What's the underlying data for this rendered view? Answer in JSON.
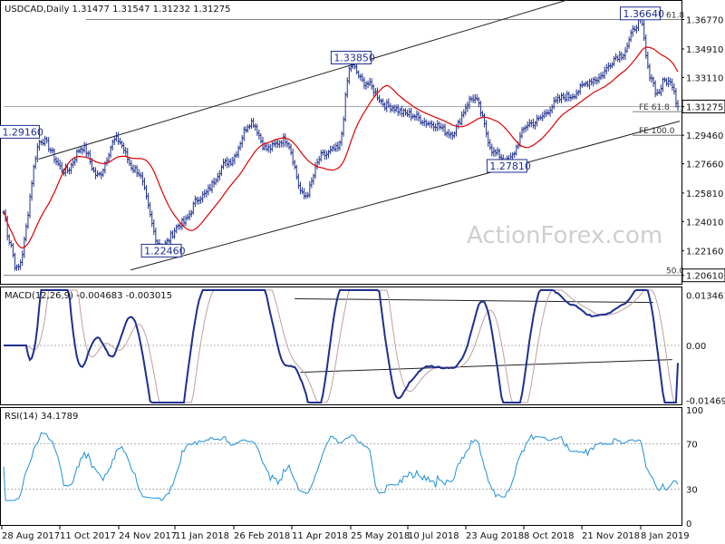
{
  "chart_data": [
    {
      "type": "candlestick",
      "panel": "price",
      "header": "USDCAD,Daily  1.31477  1.31547  1.31232  1.31275",
      "symbol": "USDCAD",
      "timeframe": "Daily",
      "ohlc_last": {
        "open": 1.31477,
        "high": 1.31547,
        "low": 1.31232,
        "close": 1.31275
      },
      "current_price_label": "1.31275",
      "yticks": [
        "1.36770",
        "1.34910",
        "1.33110",
        "1.31275",
        "1.29460",
        "1.27660",
        "1.25810",
        "1.24010",
        "1.22160",
        "1.20610"
      ],
      "ylim": [
        1.2025,
        1.372
      ],
      "ma_color": "#e00000",
      "candle_color": "#1f2f8f",
      "annotations": [
        {
          "id": "a1",
          "text": "1.29160",
          "x_index": 20,
          "price": 1.2916
        },
        {
          "id": "a2",
          "text": "1.22460",
          "x_index": 84,
          "price": 1.2246
        },
        {
          "id": "a3",
          "text": "1.33850",
          "x_index": 185,
          "price": 1.3385
        },
        {
          "id": "a4",
          "text": "1.27810",
          "x_index": 268,
          "price": 1.2781
        },
        {
          "id": "a5",
          "text": "1.36640",
          "x_index": 339,
          "price": 1.3664
        }
      ],
      "fib_levels": [
        {
          "id": "f1",
          "text": "61.8",
          "price": 1.3677
        },
        {
          "id": "f2",
          "text": "FE 61.8",
          "price": 1.3095
        },
        {
          "id": "f3",
          "text": "FE 100.0",
          "price": 1.2946
        },
        {
          "id": "f4",
          "text": "50.0",
          "price": 1.2061
        }
      ],
      "channel": {
        "upper": [
          [
            8,
            1.2795
          ],
          [
            300,
            1.38
          ]
        ],
        "lower": [
          [
            57,
            1.2095
          ],
          [
            360,
            1.3035
          ]
        ]
      },
      "watermark": "ActionForex.com"
    },
    {
      "type": "line",
      "panel": "macd",
      "header": "MACD(12,26,9) -0.004683 -0.003015",
      "values": {
        "macd": -0.004683,
        "signal": -0.003015
      },
      "yticks": [
        "0.013461",
        "0.00",
        "-0.014694"
      ],
      "ylim": [
        -0.0153,
        0.0148
      ],
      "macd_color": "#1f2f8f",
      "signal_color": "#c0a0a0"
    },
    {
      "type": "line",
      "panel": "rsi",
      "header": "RSI(14) 34.1789",
      "value": 34.1789,
      "yticks": [
        "100",
        "70",
        "30",
        "0"
      ],
      "ylim": [
        0,
        100
      ],
      "line_color": "#1e90d8"
    }
  ],
  "x_axis_labels": [
    "28 Aug 2017",
    "11 Oct 2017",
    "24 Nov 2017",
    "11 Jan 2018",
    "26 Feb 2018",
    "11 Apr 2018",
    "25 May 2018",
    "10 Jul 2018",
    "23 Aug 2018",
    "8 Oct 2018",
    "21 Nov 2018",
    "8 Jan 2019"
  ]
}
